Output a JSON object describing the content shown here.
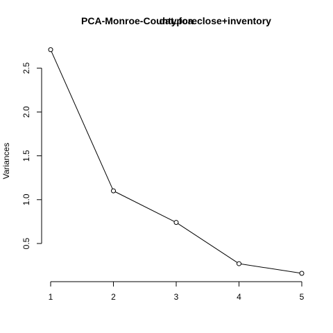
{
  "chart_data": {
    "type": "line",
    "title_part_1": "PCA-Monroe-County.foreclose+inventory",
    "title_part_2": "dat.pca",
    "xlabel": "",
    "ylabel": "Variances",
    "x": [
      1,
      2,
      3,
      4,
      5
    ],
    "values": [
      2.71,
      1.1,
      0.74,
      0.27,
      0.16
    ],
    "x_ticks": [
      "1",
      "2",
      "3",
      "4",
      "5"
    ],
    "y_ticks": [
      "0.5",
      "1.0",
      "1.5",
      "2.0",
      "2.5"
    ],
    "y_tick_values": [
      0.5,
      1.0,
      1.5,
      2.0,
      2.5
    ],
    "line_color": "#000000",
    "marker": "open-circle",
    "grid": false,
    "box": false
  }
}
